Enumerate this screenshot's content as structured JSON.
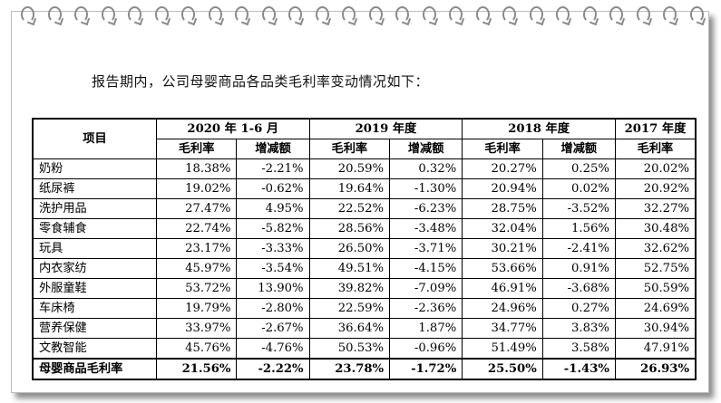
{
  "intro_text": "报告期内，公司母婴商品各品类毛利率变动情况如下：",
  "table": {
    "item_header": "项目",
    "periods": [
      "2020 年 1-6 月",
      "2019 年度",
      "2018 年度",
      "2017 年度"
    ],
    "sub_headers": [
      "毛利率",
      "增减额",
      "毛利率",
      "增减额",
      "毛利率",
      "增减额",
      "毛利率"
    ],
    "rows": [
      {
        "name": "奶粉",
        "values": [
          "18.38%",
          "-2.21%",
          "20.59%",
          "0.32%",
          "20.27%",
          "0.25%",
          "20.02%"
        ]
      },
      {
        "name": "纸尿裤",
        "values": [
          "19.02%",
          "-0.62%",
          "19.64%",
          "-1.30%",
          "20.94%",
          "0.02%",
          "20.92%"
        ]
      },
      {
        "name": "洗护用品",
        "values": [
          "27.47%",
          "4.95%",
          "22.52%",
          "-6.23%",
          "28.75%",
          "-3.52%",
          "32.27%"
        ]
      },
      {
        "name": "零食辅食",
        "values": [
          "22.74%",
          "-5.82%",
          "28.56%",
          "-3.48%",
          "32.04%",
          "1.56%",
          "30.48%"
        ]
      },
      {
        "name": "玩具",
        "values": [
          "23.17%",
          "-3.33%",
          "26.50%",
          "-3.71%",
          "30.21%",
          "-2.41%",
          "32.62%"
        ]
      },
      {
        "name": "内衣家纺",
        "values": [
          "45.97%",
          "-3.54%",
          "49.51%",
          "-4.15%",
          "53.66%",
          "0.91%",
          "52.75%"
        ]
      },
      {
        "name": "外服童鞋",
        "values": [
          "53.72%",
          "13.90%",
          "39.82%",
          "-7.09%",
          "46.91%",
          "-3.68%",
          "50.59%"
        ]
      },
      {
        "name": "车床椅",
        "values": [
          "19.79%",
          "-2.80%",
          "22.59%",
          "-2.36%",
          "24.96%",
          "0.27%",
          "24.69%"
        ]
      },
      {
        "name": "营养保健",
        "values": [
          "33.97%",
          "-2.67%",
          "36.64%",
          "1.87%",
          "34.77%",
          "3.83%",
          "30.94%"
        ]
      },
      {
        "name": "文教智能",
        "values": [
          "45.76%",
          "-4.76%",
          "50.53%",
          "-0.96%",
          "51.49%",
          "3.58%",
          "47.91%"
        ]
      }
    ],
    "total": {
      "name": "母婴商品毛利率",
      "values": [
        "21.56%",
        "-2.22%",
        "23.78%",
        "-1.72%",
        "25.50%",
        "-1.43%",
        "26.93%"
      ]
    }
  }
}
